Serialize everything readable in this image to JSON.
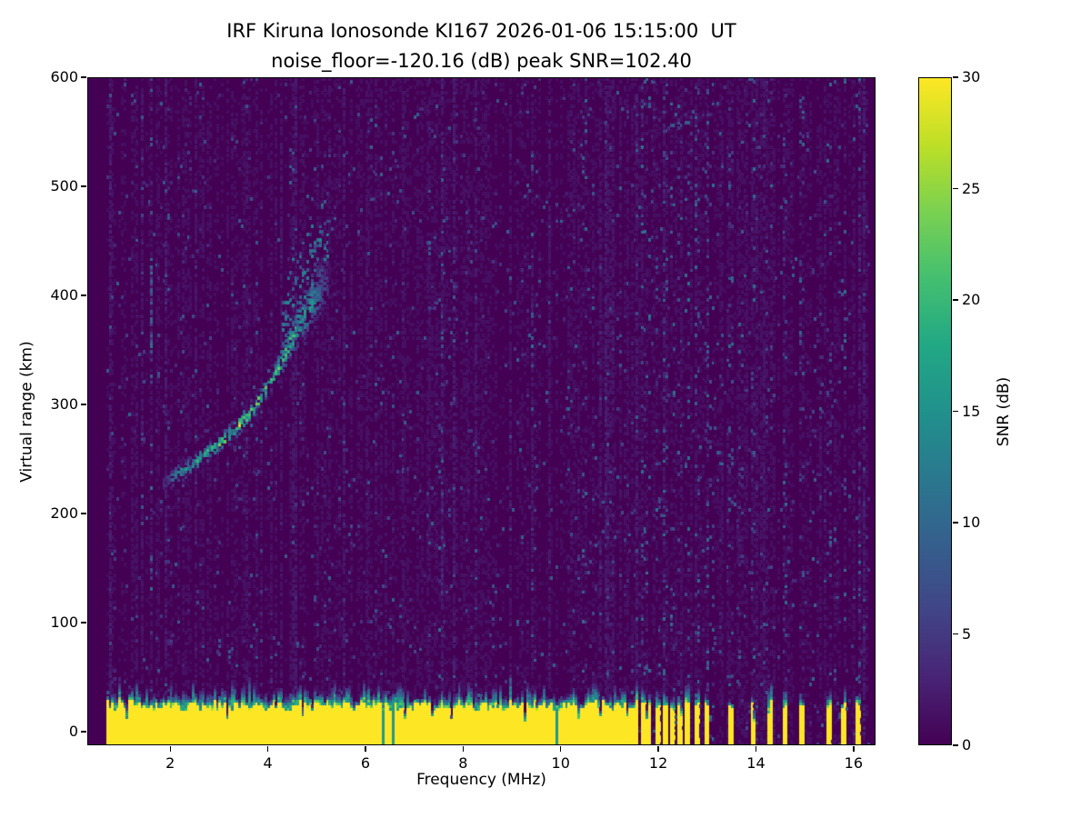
{
  "chart_data": {
    "type": "heatmap",
    "title": "IRF Kiruna Ionosonde KI167 2026-01-06 15:15:00  UT",
    "subtitle": "noise_floor=-120.16 (dB) peak SNR=102.40",
    "station": "IRF Kiruna Ionosonde KI167",
    "timestamp_ut": "2026-01-06 15:15:00",
    "noise_floor_db": -120.16,
    "peak_snr_db": 102.4,
    "xlabel": "Frequency (MHz)",
    "ylabel": "Virtual range (km)",
    "xlim": [
      0.3,
      16.45
    ],
    "ylim": [
      -12.5,
      600
    ],
    "xticks": [
      2,
      4,
      6,
      8,
      10,
      12,
      14,
      16
    ],
    "yticks": [
      0,
      100,
      200,
      300,
      400,
      500,
      600
    ],
    "grid": false,
    "colorbar": {
      "label": "SNR (dB)",
      "ticks": [
        0,
        5,
        10,
        15,
        20,
        25,
        30
      ],
      "vmin": 0,
      "vmax": 30,
      "colormap": "viridis",
      "stops": [
        "#440154",
        "#482475",
        "#414487",
        "#355f8d",
        "#2a788e",
        "#21918c",
        "#22a884",
        "#44bf70",
        "#7ad151",
        "#bddf26",
        "#fde725"
      ]
    },
    "sounding": {
      "freq_start_mhz": 0.7,
      "freq_end_mhz": 16.35,
      "freq_step_mhz": 0.05,
      "range_step_km": 2.5,
      "continuous_tx_below_mhz": 11.62
    },
    "ground_clutter": {
      "range_top_km": 25,
      "fringe_km": 15,
      "snr_db": 30
    },
    "sparse_tx_frequencies_mhz": [
      11.7,
      11.82,
      11.98,
      12.14,
      12.3,
      12.46,
      12.62,
      12.8,
      12.98,
      13.5,
      13.95,
      14.3,
      14.6,
      14.95,
      15.5,
      15.8,
      16.1
    ],
    "rfi_stripe_frequencies_mhz": [
      1.62,
      7.55,
      9.45,
      10.5,
      11.7,
      11.82,
      11.98,
      12.14,
      12.3,
      12.46,
      12.62,
      12.8,
      12.98,
      13.1,
      13.5,
      13.72,
      13.95,
      14.3,
      14.6,
      14.95,
      15.2,
      15.5,
      15.8,
      16.1
    ],
    "echo_trace": {
      "peak_snr_db": 25,
      "points_mhz_km": [
        [
          1.85,
          228
        ],
        [
          2.05,
          233
        ],
        [
          2.25,
          239
        ],
        [
          2.45,
          246
        ],
        [
          2.65,
          252
        ],
        [
          2.85,
          259
        ],
        [
          3.05,
          266
        ],
        [
          3.25,
          274
        ],
        [
          3.45,
          283
        ],
        [
          3.65,
          293
        ],
        [
          3.85,
          305
        ],
        [
          4.05,
          320
        ],
        [
          4.25,
          337
        ],
        [
          4.45,
          356
        ],
        [
          4.65,
          374
        ],
        [
          4.85,
          391
        ],
        [
          5.05,
          405
        ],
        [
          5.25,
          417
        ]
      ]
    },
    "vertical_streaks": [
      {
        "freq_mhz": 1.62,
        "range_km": [
          350,
          435
        ],
        "snr_db": 11
      }
    ]
  }
}
